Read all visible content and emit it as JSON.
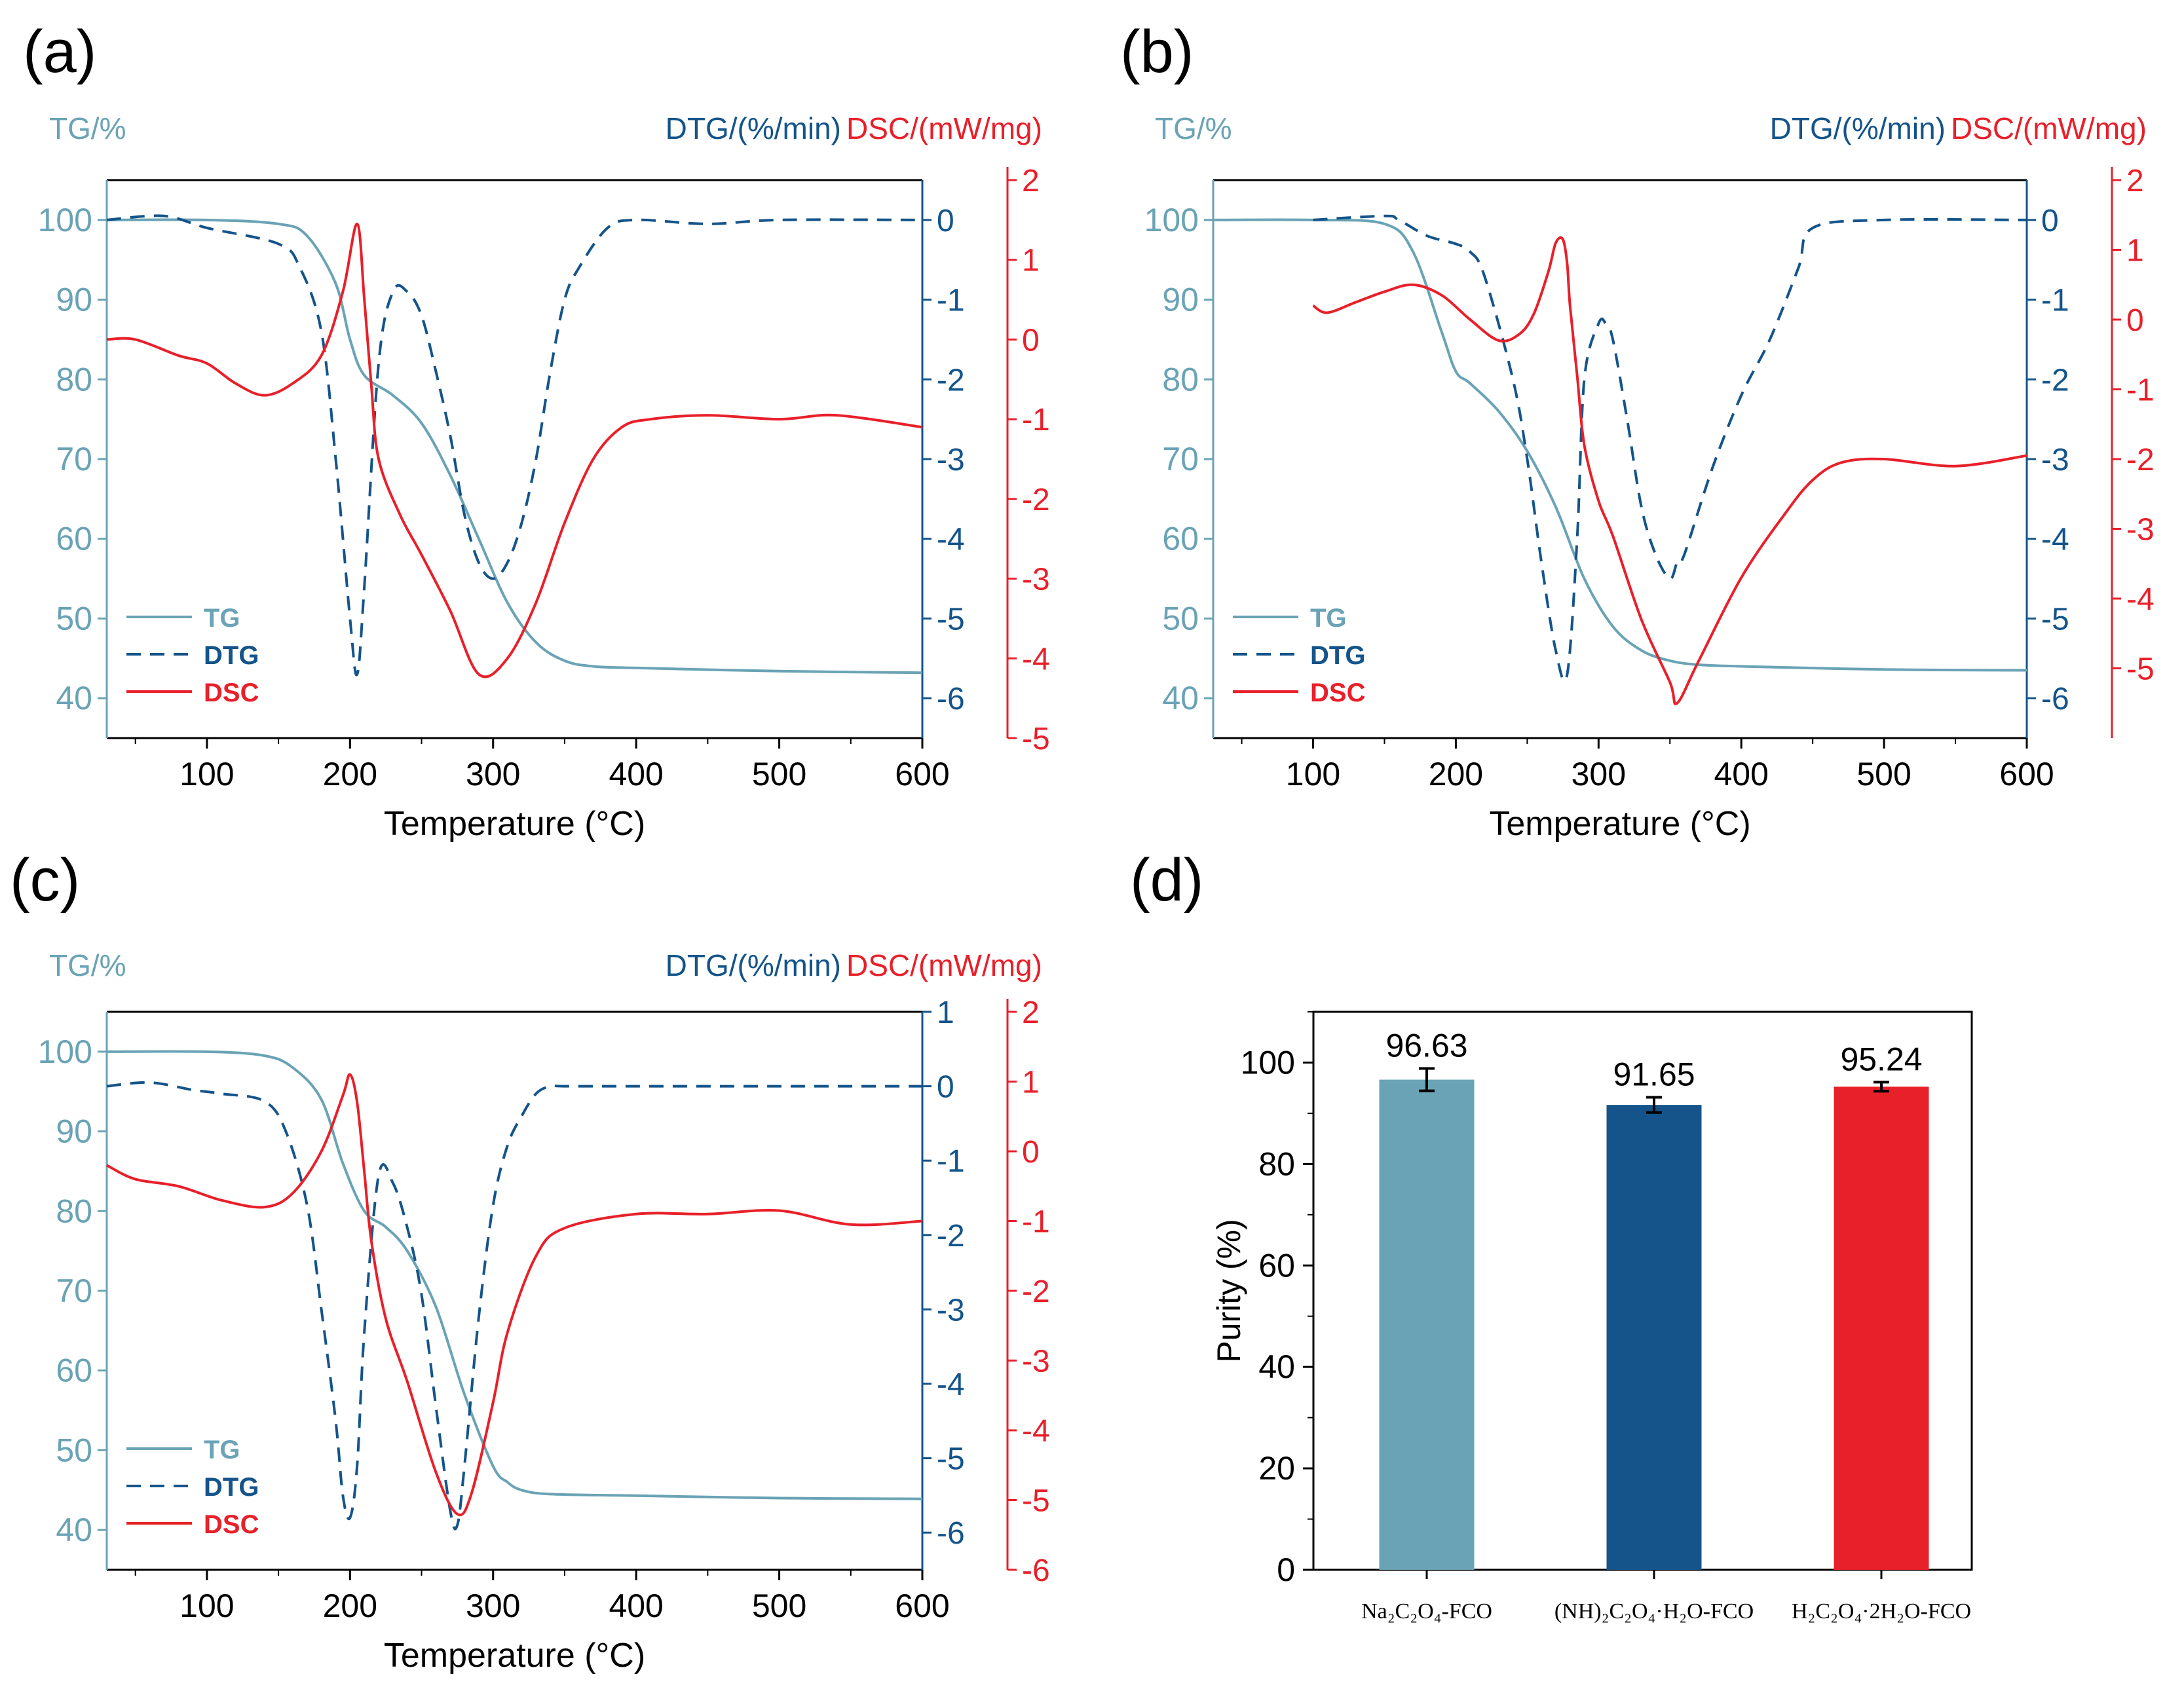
{
  "colors": {
    "tg": "#6aa3b5",
    "dtg": "#14548a",
    "dsc": "#e8202a",
    "axis": "#000000"
  },
  "chart_data": [
    {
      "panel": "(a)",
      "type": "line",
      "title_left": "TG/%",
      "title_dtg": "DTG/(%/min)",
      "title_dsc": "DSC/(mW/mg)",
      "xlabel": "Temperature (°C)",
      "xlim": [
        30,
        600
      ],
      "ylim_tg": [
        35,
        105
      ],
      "ylim_dtg": [
        -6.5,
        0.5
      ],
      "ylim_dsc": [
        -5,
        2
      ],
      "xticks": [
        100,
        200,
        300,
        400,
        500,
        600
      ],
      "yticks_tg": [
        40,
        50,
        60,
        70,
        80,
        90,
        100
      ],
      "yticks_dtg": [
        -6,
        -5,
        -4,
        -3,
        -2,
        -1,
        0
      ],
      "yticks_dsc": [
        -5,
        -4,
        -3,
        -2,
        -1,
        0,
        1,
        2
      ],
      "legend": [
        "TG",
        "DTG",
        "DSC"
      ],
      "series": [
        {
          "name": "TG",
          "x": [
            30,
            100,
            150,
            170,
            190,
            200,
            210,
            230,
            250,
            270,
            290,
            310,
            330,
            350,
            370,
            400,
            500,
            600
          ],
          "y": [
            100,
            100,
            99.5,
            98,
            92,
            85,
            80.5,
            78,
            74.5,
            68,
            60,
            52,
            47,
            44.7,
            44,
            43.8,
            43.4,
            43.2
          ]
        },
        {
          "name": "DTG",
          "x": [
            30,
            70,
            100,
            150,
            165,
            180,
            190,
            200,
            205,
            210,
            220,
            230,
            240,
            250,
            260,
            270,
            280,
            290,
            300,
            310,
            320,
            330,
            340,
            350,
            360,
            380,
            400,
            450,
            500,
            600
          ],
          "y": [
            0,
            0.05,
            -0.1,
            -0.3,
            -0.6,
            -1.4,
            -3,
            -5,
            -5.7,
            -4.6,
            -1.8,
            -0.9,
            -0.9,
            -1.2,
            -1.9,
            -2.7,
            -3.7,
            -4.3,
            -4.5,
            -4.3,
            -3.8,
            -3,
            -1.9,
            -1,
            -0.6,
            -0.1,
            0,
            -0.05,
            0,
            0
          ]
        },
        {
          "name": "DSC",
          "x": [
            30,
            50,
            80,
            100,
            120,
            140,
            160,
            180,
            195,
            205,
            210,
            215,
            220,
            235,
            250,
            270,
            290,
            310,
            330,
            350,
            370,
            390,
            410,
            450,
            500,
            540,
            600
          ],
          "y": [
            0,
            0,
            -0.2,
            -0.3,
            -0.55,
            -0.7,
            -0.55,
            -0.2,
            0.6,
            1.45,
            0.5,
            -0.6,
            -1.5,
            -2.2,
            -2.7,
            -3.4,
            -4.2,
            -4.0,
            -3.3,
            -2.3,
            -1.5,
            -1.1,
            -1.0,
            -0.95,
            -1.0,
            -0.95,
            -1.1
          ]
        }
      ]
    },
    {
      "panel": "(b)",
      "type": "line",
      "title_left": "TG/%",
      "title_dtg": "DTG/(%/min)",
      "title_dsc": "DSC/(mW/mg)",
      "xlabel": "Temperature (°C)",
      "xlim": [
        30,
        600
      ],
      "ylim_tg": [
        35,
        105
      ],
      "ylim_dtg": [
        -6.5,
        0.5
      ],
      "ylim_dsc": [
        -6,
        2
      ],
      "xticks": [
        100,
        200,
        300,
        400,
        500,
        600
      ],
      "yticks_tg": [
        40,
        50,
        60,
        70,
        80,
        90,
        100
      ],
      "yticks_dtg": [
        -6,
        -5,
        -4,
        -3,
        -2,
        -1,
        0
      ],
      "yticks_dsc": [
        -5,
        -4,
        -3,
        -2,
        -1,
        0,
        1,
        2
      ],
      "legend": [
        "TG",
        "DTG",
        "DSC"
      ],
      "series": [
        {
          "name": "TG",
          "x": [
            30,
            100,
            150,
            170,
            190,
            200,
            210,
            230,
            250,
            270,
            290,
            310,
            330,
            350,
            370,
            400,
            500,
            600
          ],
          "y": [
            100,
            100,
            99.5,
            96,
            86,
            81,
            79.5,
            76,
            71,
            64,
            55,
            49,
            46,
            44.7,
            44.2,
            44,
            43.6,
            43.5
          ]
        },
        {
          "name": "DTG",
          "x": [
            100,
            150,
            160,
            180,
            200,
            210,
            220,
            240,
            250,
            260,
            270,
            278,
            285,
            290,
            300,
            305,
            310,
            320,
            330,
            340,
            350,
            355,
            360,
            380,
            400,
            420,
            440,
            450,
            500,
            600
          ],
          "y": [
            0,
            0.05,
            0,
            -0.2,
            -0.3,
            -0.4,
            -0.7,
            -2,
            -3,
            -4.3,
            -5.4,
            -5.7,
            -4,
            -2,
            -1.3,
            -1.3,
            -1.5,
            -2.5,
            -3.6,
            -4.2,
            -4.5,
            -4.3,
            -4.2,
            -3.1,
            -2.2,
            -1.5,
            -0.6,
            -0.1,
            0,
            0
          ]
        },
        {
          "name": "DSC",
          "x": [
            100,
            110,
            130,
            150,
            170,
            190,
            210,
            230,
            245,
            255,
            265,
            270,
            275,
            278,
            280,
            285,
            290,
            300,
            310,
            330,
            350,
            355,
            370,
            400,
            430,
            450,
            470,
            500,
            550,
            600
          ],
          "y": [
            0.2,
            0.1,
            0.25,
            0.4,
            0.5,
            0.35,
            0,
            -0.3,
            -0.2,
            0.1,
            0.7,
            1.1,
            1.15,
            0.8,
            0.2,
            -0.8,
            -1.8,
            -2.6,
            -3.1,
            -4.3,
            -5.2,
            -5.5,
            -4.9,
            -3.7,
            -2.8,
            -2.3,
            -2.05,
            -2.0,
            -2.1,
            -1.95
          ]
        }
      ]
    },
    {
      "panel": "(c)",
      "type": "line",
      "title_left": "TG/%",
      "title_dtg": "DTG/(%/min)",
      "title_dsc": "DSC/(mW/mg)",
      "xlabel": "Temperature (°C)",
      "xlim": [
        30,
        600
      ],
      "ylim_tg": [
        35,
        105
      ],
      "ylim_dtg": [
        -6.5,
        1
      ],
      "ylim_dsc": [
        -6,
        2
      ],
      "xticks": [
        100,
        200,
        300,
        400,
        500,
        600
      ],
      "yticks_tg": [
        40,
        50,
        60,
        70,
        80,
        90,
        100
      ],
      "yticks_dtg": [
        -6,
        -5,
        -4,
        -3,
        -2,
        -1,
        0,
        1
      ],
      "yticks_dsc": [
        -6,
        -5,
        -4,
        -3,
        -2,
        -1,
        0,
        1,
        2
      ],
      "legend": [
        "TG",
        "DTG",
        "DSC"
      ],
      "series": [
        {
          "name": "TG",
          "x": [
            30,
            100,
            140,
            160,
            180,
            195,
            210,
            225,
            240,
            260,
            280,
            300,
            310,
            320,
            340,
            400,
            500,
            600
          ],
          "y": [
            100,
            100,
            99.5,
            98,
            94,
            86,
            80,
            78,
            75,
            68,
            57,
            48,
            46,
            45,
            44.5,
            44.3,
            44,
            43.9
          ]
        },
        {
          "name": "DTG",
          "x": [
            30,
            60,
            90,
            110,
            140,
            155,
            170,
            180,
            190,
            195,
            200,
            205,
            210,
            220,
            230,
            240,
            250,
            260,
            270,
            275,
            280,
            290,
            300,
            310,
            320,
            330,
            340,
            350,
            400,
            500,
            600
          ],
          "y": [
            0,
            0.05,
            -0.05,
            -0.1,
            -0.2,
            -0.6,
            -1.6,
            -3,
            -4.5,
            -5.5,
            -5.8,
            -5.1,
            -3.3,
            -1.2,
            -1.3,
            -1.9,
            -2.8,
            -4.3,
            -5.7,
            -5.9,
            -5.1,
            -3.1,
            -1.6,
            -0.8,
            -0.4,
            -0.1,
            0,
            0,
            0,
            0,
            0
          ]
        },
        {
          "name": "DSC",
          "x": [
            30,
            50,
            80,
            110,
            140,
            160,
            180,
            195,
            200,
            205,
            210,
            215,
            225,
            240,
            260,
            275,
            285,
            300,
            310,
            330,
            350,
            400,
            450,
            500,
            550,
            600
          ],
          "y": [
            -0.2,
            -0.4,
            -0.5,
            -0.7,
            -0.8,
            -0.6,
            0,
            0.8,
            1.1,
            0.7,
            -0.3,
            -1.3,
            -2.4,
            -3.3,
            -4.6,
            -5.2,
            -4.9,
            -3.6,
            -2.6,
            -1.5,
            -1.1,
            -0.9,
            -0.9,
            -0.85,
            -1.05,
            -1.0
          ]
        }
      ]
    },
    {
      "panel": "(d)",
      "type": "bar",
      "categories": [
        "Na₂C₂O₄-FCO",
        "(NH)₂C₂O₄·H₂O-FCO",
        "H₂C₂O₄·2H₂O-FCO"
      ],
      "values": [
        96.63,
        91.65,
        95.24
      ],
      "errors": [
        2.2,
        1.5,
        0.9
      ],
      "value_labels": [
        "96.63",
        "91.65",
        "95.24"
      ],
      "ylabel": "Purity (%)",
      "ylim": [
        0,
        110
      ],
      "yticks": [
        0,
        20,
        40,
        60,
        80,
        100
      ]
    }
  ]
}
